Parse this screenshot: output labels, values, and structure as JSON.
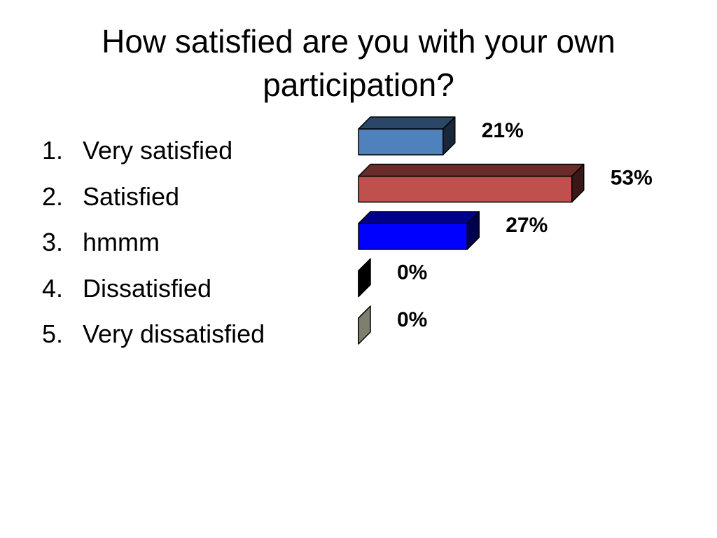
{
  "title": "How satisfied are you with your own participation?",
  "options": [
    {
      "number": "1.",
      "label": "Very satisfied"
    },
    {
      "number": "2.",
      "label": "Satisfied"
    },
    {
      "number": "3.",
      "label": "hmmm"
    },
    {
      "number": "4.",
      "label": "Dissatisfied"
    },
    {
      "number": "5.",
      "label": "Very dissatisfied"
    }
  ],
  "chart_data": {
    "type": "bar",
    "orientation": "horizontal",
    "style": "3d",
    "categories": [
      "Very satisfied",
      "Satisfied",
      "hmmm",
      "Dissatisfied",
      "Very dissatisfied"
    ],
    "values": [
      21,
      53,
      27,
      0,
      0
    ],
    "data_labels": [
      "21%",
      "53%",
      "27%",
      "0%",
      "0%"
    ],
    "colors": [
      "#4F81BD",
      "#C0504D",
      "#0000FF",
      "#000000",
      "#7F7F6F"
    ],
    "xlim": [
      0,
      100
    ],
    "grid": false,
    "axes_visible": false,
    "title": "",
    "xlabel": "",
    "ylabel": ""
  }
}
